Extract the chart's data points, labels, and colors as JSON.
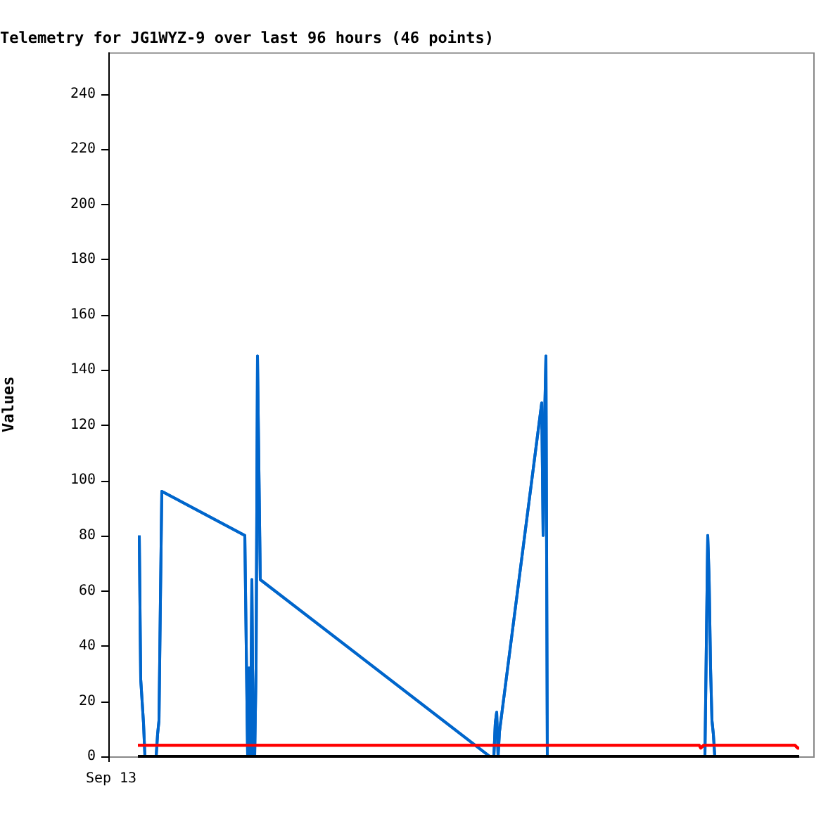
{
  "chart_data": {
    "type": "line",
    "title": "Telemetry for JG1WYZ-9 over last 96 hours (46 points)",
    "ylabel": "Values",
    "annotations": [
      "Sep 13"
    ],
    "categories": [
      null,
      null,
      null,
      null,
      null,
      null,
      null,
      null,
      null,
      null,
      null,
      null,
      null,
      null,
      null,
      null,
      null,
      null,
      null,
      null,
      null,
      null,
      null,
      null,
      null,
      null,
      null,
      null,
      null,
      null,
      null,
      null,
      null,
      null,
      null,
      null,
      null,
      null,
      null,
      null,
      null,
      null,
      null,
      null,
      null,
      null,
      null,
      null,
      null,
      null,
      null,
      null,
      null,
      null,
      null,
      null,
      null,
      null,
      null,
      null,
      null,
      null,
      null,
      null,
      null,
      null,
      null,
      null,
      null,
      null,
      null,
      null,
      null,
      null,
      null,
      null,
      null,
      null,
      null,
      null,
      null,
      null,
      null,
      null,
      null,
      null,
      null,
      null,
      null,
      null,
      null,
      null,
      null,
      null,
      null,
      null,
      null,
      null,
      null,
      null,
      null,
      null,
      null,
      null,
      null,
      null,
      null,
      null,
      null,
      null,
      null,
      null,
      null,
      null,
      null,
      null,
      null,
      null,
      null,
      null,
      null,
      null,
      null,
      null,
      null,
      null,
      null,
      null,
      null,
      null,
      null,
      null,
      null,
      null,
      null,
      null,
      null,
      null,
      null,
      null,
      null,
      null,
      null,
      null,
      null,
      null,
      null,
      null,
      null,
      null,
      null,
      null,
      null,
      null,
      null,
      null,
      null,
      null,
      null,
      null,
      null,
      null,
      null,
      null,
      null,
      null,
      null,
      null,
      null,
      null,
      null,
      null,
      null,
      null,
      null,
      null,
      null,
      null,
      null,
      null,
      null,
      null,
      null,
      null,
      null,
      null,
      null,
      null,
      null,
      null,
      null,
      null,
      null,
      null,
      null,
      null,
      null,
      null,
      null,
      null,
      null,
      null,
      null,
      null,
      null,
      null,
      null,
      null,
      null,
      null,
      null,
      null,
      null,
      null,
      null,
      null,
      null,
      null,
      null,
      null,
      null,
      null,
      null,
      null,
      null,
      null,
      null,
      null,
      null,
      null,
      null,
      null,
      null,
      null,
      null,
      null,
      null,
      null,
      null,
      null,
      null,
      null,
      null,
      null,
      null,
      null,
      null,
      null,
      null,
      null,
      null,
      null,
      null,
      null,
      null,
      null,
      null,
      null,
      null,
      null,
      null,
      null,
      null,
      null,
      null,
      null,
      null,
      null,
      null,
      null,
      null,
      null,
      null,
      null,
      null,
      null,
      null,
      null,
      null,
      null,
      null,
      null,
      null,
      null,
      null,
      null,
      null,
      null,
      null,
      null,
      null,
      null,
      null,
      null,
      null,
      null,
      null,
      null,
      null,
      null,
      null,
      null,
      null,
      null,
      null,
      null,
      null,
      null,
      null,
      null,
      null,
      null,
      null,
      null,
      null,
      null,
      null,
      null,
      null,
      null,
      null,
      null,
      null,
      null,
      null,
      null,
      null,
      null,
      null,
      null,
      null,
      null,
      null,
      null,
      null,
      null,
      null,
      null,
      null,
      null,
      null,
      null,
      null,
      null,
      null,
      null,
      null,
      null,
      null,
      null,
      null,
      null,
      null,
      null,
      null,
      null,
      null,
      null,
      null,
      null,
      null,
      null,
      null,
      null,
      null,
      null,
      null,
      null,
      null,
      null,
      null,
      null,
      null,
      null,
      null,
      null,
      null,
      null,
      null,
      null,
      null,
      null,
      null,
      null,
      null,
      null,
      null,
      null,
      null,
      null,
      null,
      null,
      null,
      null,
      null,
      null,
      null,
      null,
      null,
      null,
      null,
      null,
      null,
      null,
      null,
      null,
      null,
      null,
      null,
      null,
      null,
      null,
      null,
      null,
      null,
      null,
      null,
      null,
      null,
      null,
      null,
      null,
      null,
      null,
      null,
      null,
      null,
      null,
      null,
      null,
      null,
      null,
      null,
      null,
      null,
      null,
      null,
      null,
      null,
      null,
      null,
      null,
      null,
      null,
      null,
      null,
      null,
      null,
      null,
      null,
      null,
      null,
      null,
      null,
      null,
      null,
      null,
      null,
      null,
      null,
      null,
      null,
      null,
      null,
      null,
      null,
      null,
      null,
      null,
      null,
      null
    ],
    "ylim": [
      0,
      255
    ],
    "yticks": [
      0,
      20,
      40,
      60,
      80,
      100,
      120,
      140,
      160,
      180,
      200,
      220,
      240
    ],
    "grid": false,
    "legend": false,
    "marker": "none",
    "line_style": "solid",
    "series": [
      {
        "color": "#000000",
        "values": [
          0,
          null,
          null,
          null,
          null,
          null,
          null,
          null,
          null,
          null,
          null,
          null,
          null,
          null,
          null,
          null,
          null,
          null,
          null,
          null,
          null,
          null,
          null,
          null,
          null,
          null,
          null,
          null,
          null,
          null,
          null,
          null,
          null,
          null,
          null,
          null,
          null,
          null,
          null,
          null,
          null,
          null,
          null,
          null,
          null,
          null,
          null,
          null,
          null,
          null,
          null,
          null,
          null,
          null,
          null,
          null,
          null,
          null,
          null,
          null,
          null,
          null,
          null,
          null,
          null,
          null,
          null,
          null,
          null,
          null,
          null,
          null,
          null,
          null,
          null,
          null,
          null,
          null,
          null,
          null,
          null,
          null,
          null,
          null,
          null,
          null,
          null,
          null,
          null,
          null,
          null,
          null,
          null,
          null,
          null,
          null,
          null,
          null,
          null,
          null,
          null,
          null,
          null,
          null,
          null,
          null,
          null,
          null,
          null,
          null,
          null,
          null,
          null,
          null,
          null,
          null,
          null,
          null,
          null,
          null,
          null,
          null,
          null,
          null,
          null,
          null,
          null,
          null,
          null,
          null,
          null,
          null,
          null,
          null,
          null,
          null,
          null,
          null,
          null,
          null,
          null,
          null,
          null,
          null,
          null,
          null,
          null,
          null,
          null,
          null,
          null,
          null,
          null,
          null,
          null,
          null,
          null,
          null,
          null,
          null,
          null,
          null,
          null,
          null,
          null,
          null,
          null,
          null,
          null,
          null,
          null,
          null,
          null,
          null,
          null,
          null,
          null,
          null,
          null,
          null,
          null,
          null,
          null,
          null,
          null,
          null,
          null,
          null,
          null,
          null,
          null,
          null,
          null,
          null,
          null,
          null,
          null,
          null,
          null,
          null,
          null,
          null,
          null,
          null,
          null,
          null,
          null,
          null,
          null,
          null,
          null,
          null,
          null,
          null,
          null,
          null,
          null,
          null,
          null,
          null,
          null,
          null,
          null,
          null,
          null,
          null,
          null,
          null,
          null,
          null,
          null,
          null,
          null,
          null,
          null,
          null,
          null,
          null,
          null,
          null,
          null,
          null,
          null,
          null,
          null,
          null,
          null,
          null,
          null,
          null,
          null,
          null,
          null,
          null,
          null,
          null,
          null,
          null,
          null,
          null,
          null,
          null,
          null,
          null,
          null,
          null,
          null,
          null,
          null,
          null,
          null,
          null,
          null,
          null,
          null,
          null,
          null,
          null,
          null,
          null,
          null,
          null,
          null,
          null,
          null,
          null,
          null,
          null,
          null,
          null,
          null,
          null,
          null,
          null,
          null,
          null,
          null,
          null,
          null,
          null,
          null,
          null,
          null,
          null,
          null,
          null,
          null,
          null,
          null,
          null,
          null,
          null,
          null,
          null,
          null,
          null,
          null,
          null,
          null,
          null,
          null,
          null,
          null,
          null,
          null,
          null,
          null,
          null,
          null,
          null,
          null,
          null,
          null,
          null,
          null,
          null,
          null,
          null,
          null,
          null,
          null,
          null,
          null,
          null,
          null,
          null,
          null,
          null,
          null,
          null,
          null,
          null,
          null,
          null,
          null,
          null,
          null,
          null,
          null,
          null,
          null,
          null,
          null,
          null,
          null,
          null,
          null,
          null,
          null,
          null,
          null,
          null,
          null,
          null,
          null,
          null,
          null,
          null,
          null,
          null,
          null,
          null,
          null,
          null,
          null,
          null,
          null,
          null,
          null,
          null,
          null,
          null,
          null,
          null,
          null,
          null,
          null,
          null,
          null,
          null,
          null,
          null,
          null,
          null,
          null,
          null,
          null,
          null,
          null,
          null,
          null,
          null,
          null,
          null,
          null,
          null,
          null,
          null,
          null,
          null,
          null,
          null,
          null,
          null,
          null,
          null,
          null,
          null,
          null,
          null,
          null,
          null,
          null,
          null,
          null,
          null,
          null,
          null,
          null,
          null,
          null,
          null,
          null,
          null,
          null,
          null,
          null,
          null,
          null,
          null,
          null,
          null,
          null,
          null,
          null,
          null,
          null,
          null,
          null,
          null,
          null,
          null,
          null,
          null,
          null,
          null,
          null,
          null,
          null,
          null,
          0
        ]
      },
      {
        "color": "#ff0000",
        "values": [
          4,
          null,
          null,
          null,
          null,
          null,
          null,
          null,
          null,
          null,
          null,
          null,
          null,
          null,
          null,
          null,
          null,
          null,
          null,
          null,
          null,
          null,
          null,
          null,
          null,
          null,
          null,
          null,
          null,
          null,
          null,
          null,
          null,
          null,
          null,
          null,
          null,
          null,
          null,
          null,
          null,
          null,
          null,
          null,
          null,
          null,
          null,
          null,
          null,
          null,
          null,
          null,
          null,
          null,
          null,
          null,
          null,
          null,
          null,
          null,
          null,
          null,
          null,
          null,
          null,
          null,
          null,
          null,
          null,
          null,
          null,
          null,
          null,
          null,
          null,
          null,
          null,
          null,
          null,
          null,
          null,
          null,
          null,
          null,
          null,
          null,
          null,
          null,
          null,
          null,
          null,
          null,
          null,
          null,
          null,
          null,
          null,
          null,
          null,
          null,
          null,
          null,
          null,
          null,
          null,
          null,
          null,
          null,
          null,
          null,
          null,
          null,
          null,
          null,
          null,
          null,
          null,
          null,
          null,
          null,
          null,
          null,
          null,
          null,
          null,
          null,
          null,
          null,
          null,
          null,
          null,
          null,
          null,
          null,
          null,
          null,
          null,
          null,
          null,
          null,
          null,
          null,
          null,
          null,
          null,
          null,
          null,
          null,
          null,
          null,
          null,
          null,
          null,
          null,
          null,
          null,
          null,
          null,
          null,
          null,
          null,
          null,
          null,
          null,
          null,
          null,
          null,
          null,
          null,
          null,
          null,
          null,
          null,
          null,
          null,
          null,
          null,
          null,
          null,
          null,
          null,
          null,
          null,
          null,
          null,
          null,
          null,
          null,
          null,
          null,
          null,
          null,
          null,
          null,
          null,
          null,
          null,
          null,
          null,
          null,
          null,
          null,
          null,
          null,
          null,
          null,
          null,
          null,
          null,
          null,
          null,
          null,
          null,
          null,
          null,
          null,
          null,
          null,
          null,
          null,
          null,
          null,
          null,
          null,
          null,
          null,
          null,
          null,
          null,
          null,
          null,
          null,
          null,
          null,
          null,
          null,
          null,
          null,
          null,
          null,
          null,
          null,
          null,
          null,
          null,
          null,
          null,
          null,
          null,
          null,
          null,
          null,
          null,
          null,
          null,
          null,
          null,
          null,
          null,
          null,
          null,
          null,
          null,
          null,
          null,
          null,
          null,
          null,
          null,
          null,
          null,
          null,
          null,
          null,
          null,
          null,
          null,
          null,
          null,
          null,
          null,
          null,
          null,
          null,
          null,
          null,
          null,
          null,
          null,
          null,
          null,
          null,
          null,
          null,
          null,
          null,
          null,
          null,
          null,
          null,
          null,
          null,
          null,
          null,
          null,
          null,
          null,
          null,
          null,
          null,
          null,
          null,
          null,
          null,
          null,
          null,
          null,
          null,
          null,
          null,
          null,
          null,
          null,
          null,
          null,
          null,
          null,
          null,
          null,
          null,
          null,
          null,
          null,
          null,
          null,
          null,
          null,
          null,
          null,
          null,
          null,
          null,
          null,
          null,
          null,
          null,
          null,
          null,
          null,
          null,
          null,
          null,
          null,
          null,
          null,
          null,
          null,
          null,
          null,
          null,
          null,
          null,
          null,
          null,
          null,
          null,
          null,
          null,
          null,
          null,
          null,
          null,
          null,
          null,
          null,
          null,
          null,
          null,
          null,
          null,
          null,
          null,
          null,
          null,
          null,
          null,
          null,
          null,
          null,
          null,
          null,
          null,
          null,
          null,
          null,
          null,
          null,
          null,
          null,
          4,
          3,
          null,
          4,
          null,
          null,
          null,
          null,
          null,
          null,
          null,
          null,
          null,
          null,
          null,
          null,
          null,
          null,
          null,
          null,
          null,
          null,
          null,
          null,
          null,
          null,
          null,
          null,
          null,
          null,
          null,
          null,
          null,
          null,
          null,
          null,
          null,
          null,
          null,
          null,
          null,
          null,
          null,
          null,
          null,
          null,
          null,
          null,
          null,
          null,
          null,
          null,
          null,
          null,
          null,
          null,
          null,
          null,
          null,
          null,
          null,
          null,
          null,
          null,
          null,
          null,
          null,
          null,
          4,
          null,
          3,
          3
        ]
      },
      {
        "color": "#0066cc",
        "values": [
          null,
          80,
          28,
          20,
          12,
          0,
          null,
          null,
          null,
          null,
          null,
          null,
          null,
          0,
          8,
          13,
          56,
          96,
          null,
          null,
          null,
          null,
          null,
          null,
          null,
          null,
          null,
          null,
          null,
          null,
          null,
          null,
          null,
          null,
          null,
          null,
          null,
          null,
          null,
          null,
          null,
          null,
          null,
          null,
          null,
          null,
          null,
          null,
          null,
          null,
          null,
          null,
          null,
          null,
          null,
          null,
          null,
          null,
          null,
          null,
          null,
          null,
          null,
          null,
          null,
          null,
          null,
          null,
          null,
          null,
          null,
          null,
          null,
          null,
          null,
          null,
          80,
          40,
          0,
          32,
          0,
          64,
          0,
          0,
          32,
          145,
          104,
          64,
          null,
          null,
          null,
          null,
          null,
          null,
          null,
          null,
          null,
          null,
          null,
          null,
          null,
          null,
          null,
          null,
          null,
          null,
          null,
          null,
          null,
          null,
          null,
          null,
          null,
          null,
          null,
          null,
          null,
          null,
          null,
          null,
          null,
          null,
          null,
          null,
          null,
          null,
          null,
          null,
          null,
          null,
          null,
          null,
          null,
          null,
          null,
          null,
          null,
          null,
          null,
          null,
          null,
          null,
          null,
          null,
          null,
          null,
          null,
          null,
          null,
          null,
          null,
          null,
          null,
          null,
          null,
          null,
          null,
          null,
          null,
          null,
          null,
          null,
          null,
          null,
          null,
          null,
          null,
          null,
          null,
          null,
          null,
          null,
          null,
          null,
          null,
          null,
          null,
          null,
          null,
          null,
          null,
          null,
          null,
          null,
          null,
          null,
          null,
          null,
          null,
          null,
          null,
          null,
          null,
          null,
          null,
          null,
          null,
          null,
          null,
          null,
          null,
          null,
          null,
          null,
          null,
          null,
          null,
          null,
          null,
          null,
          null,
          null,
          null,
          null,
          null,
          null,
          null,
          null,
          null,
          null,
          null,
          null,
          null,
          null,
          null,
          null,
          null,
          null,
          null,
          null,
          null,
          null,
          null,
          null,
          null,
          null,
          null,
          null,
          null,
          null,
          null,
          null,
          null,
          null,
          null,
          null,
          null,
          null,
          null,
          null,
          0,
          null,
          null,
          0,
          12,
          16,
          0,
          9,
          null,
          null,
          null,
          null,
          null,
          null,
          null,
          null,
          null,
          null,
          null,
          null,
          null,
          null,
          null,
          null,
          null,
          null,
          null,
          null,
          null,
          null,
          null,
          null,
          null,
          null,
          null,
          null,
          null,
          128,
          80,
          121,
          145,
          0,
          null,
          null,
          null,
          null,
          null,
          null,
          null,
          null,
          null,
          null,
          null,
          null,
          null,
          null,
          null,
          null,
          null,
          null,
          null,
          null,
          null,
          null,
          null,
          null,
          null,
          null,
          null,
          null,
          null,
          null,
          null,
          null,
          null,
          null,
          null,
          null,
          null,
          null,
          null,
          null,
          null,
          null,
          null,
          null,
          null,
          null,
          null,
          null,
          null,
          null,
          null,
          null,
          null,
          null,
          null,
          null,
          null,
          null,
          null,
          null,
          null,
          null,
          null,
          null,
          null,
          null,
          null,
          null,
          null,
          null,
          null,
          null,
          null,
          null,
          null,
          null,
          null,
          null,
          null,
          null,
          null,
          null,
          null,
          null,
          null,
          null,
          null,
          null,
          null,
          null,
          null,
          null,
          null,
          null,
          null,
          null,
          null,
          null,
          null,
          null,
          null,
          null,
          null,
          null,
          null,
          null,
          null,
          null,
          null,
          null,
          null,
          0,
          40,
          80,
          64,
          32,
          13,
          8,
          0,
          null,
          null,
          null,
          null,
          null,
          null,
          null,
          null,
          null,
          null,
          null,
          null,
          null,
          null,
          null,
          null,
          null,
          null,
          null,
          null,
          null,
          null,
          null,
          null,
          null,
          null,
          null,
          null,
          null,
          null,
          null,
          null,
          null,
          null,
          null,
          null,
          null,
          null,
          null,
          null,
          null,
          null,
          null,
          null,
          null,
          null,
          null,
          null,
          null,
          null,
          null,
          null,
          null,
          null,
          null,
          null,
          null,
          null,
          null,
          null
        ]
      }
    ]
  }
}
